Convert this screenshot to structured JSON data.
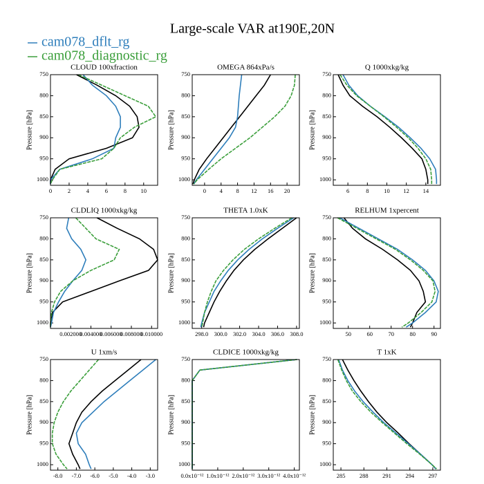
{
  "title": "Large-scale VAR at190E,20N",
  "legend": [
    {
      "name": "cam078_dflt_rg",
      "color": "#2e7ebb"
    },
    {
      "name": "cam078_diagnostic_rg",
      "color": "#3a9e3a"
    }
  ],
  "chart_data": [
    {
      "type": "line",
      "title": "CLOUD  100xfraction",
      "ylabel": "Pressure [hPa]",
      "xlim": [
        0,
        11.5
      ],
      "xticks": [
        0,
        2,
        4,
        6,
        8,
        10
      ],
      "ylim": [
        1013,
        750
      ],
      "yticks": [
        750,
        800,
        850,
        900,
        950,
        1000
      ],
      "y": [
        750,
        775,
        800,
        825,
        850,
        875,
        900,
        925,
        950,
        975,
        1000,
        1010
      ],
      "series": [
        {
          "color": "#000000",
          "linestyle": "solid",
          "values": [
            2.8,
            5,
            7,
            8.5,
            9.3,
            9.5,
            8.8,
            6,
            2,
            0.5,
            0,
            0
          ]
        },
        {
          "color": "#2e7ebb",
          "linestyle": "solid",
          "values": [
            3.5,
            4.5,
            6,
            7,
            7.5,
            7.5,
            7,
            6.8,
            4.5,
            1,
            0,
            0
          ]
        },
        {
          "color": "#3a9e3a",
          "linestyle": "dashed",
          "values": [
            3,
            5.5,
            8,
            10.5,
            11.3,
            9,
            7.5,
            6.8,
            5.5,
            1,
            0.2,
            0
          ]
        }
      ]
    },
    {
      "type": "line",
      "title": "OMEGA  864xPa/s",
      "ylabel": "Pressure [hPa]",
      "xlim": [
        -3,
        23
      ],
      "xticks": [
        0,
        4,
        8,
        12,
        16,
        20
      ],
      "ylim": [
        1013,
        750
      ],
      "yticks": [
        750,
        800,
        850,
        900,
        950,
        1000
      ],
      "y": [
        750,
        775,
        800,
        825,
        850,
        875,
        900,
        925,
        950,
        975,
        1000,
        1010
      ],
      "series": [
        {
          "color": "#000000",
          "linestyle": "solid",
          "values": [
            16,
            14.5,
            12.5,
            10.5,
            8.5,
            6.5,
            4.5,
            2.5,
            0.5,
            -1.3,
            -2.5,
            -2.8
          ]
        },
        {
          "color": "#2e7ebb",
          "linestyle": "solid",
          "values": [
            9,
            8.7,
            8.4,
            8.2,
            8,
            7.5,
            6,
            4,
            2,
            0,
            -2,
            -2.6
          ]
        },
        {
          "color": "#3a9e3a",
          "linestyle": "dashed",
          "values": [
            22,
            21.8,
            21,
            19.5,
            17,
            14,
            11,
            7.5,
            4,
            1,
            -1.8,
            -2.6
          ]
        }
      ]
    },
    {
      "type": "line",
      "title": "Q  1000xkg/kg",
      "ylabel": "Pressure [hPa]",
      "xlim": [
        4.5,
        15.5
      ],
      "xticks": [
        6,
        8,
        10,
        12,
        14
      ],
      "ylim": [
        1013,
        750
      ],
      "yticks": [
        750,
        800,
        850,
        900,
        950,
        1000
      ],
      "y": [
        750,
        775,
        800,
        825,
        850,
        875,
        900,
        925,
        950,
        975,
        1000,
        1010
      ],
      "series": [
        {
          "color": "#000000",
          "linestyle": "solid",
          "values": [
            5,
            5.5,
            6.2,
            7.5,
            9,
            10.3,
            11.5,
            12.6,
            13.6,
            14,
            14.2,
            14.2
          ]
        },
        {
          "color": "#2e7ebb",
          "linestyle": "solid",
          "values": [
            5.5,
            6.1,
            7,
            8.3,
            9.8,
            11.2,
            12.4,
            13.5,
            14.4,
            15,
            15.1,
            15.1
          ]
        },
        {
          "color": "#3a9e3a",
          "linestyle": "dashed",
          "values": [
            5.2,
            5.9,
            6.9,
            8.3,
            9.7,
            11,
            12.2,
            13.2,
            14,
            14.5,
            14.6,
            14.6
          ]
        }
      ]
    },
    {
      "type": "line",
      "title": "CLDLIQ  1000xkg/kg",
      "ylabel": "Pressure [hPa]",
      "xlim": [
        0,
        0.0106
      ],
      "xticks": [
        {
          "value": 0.002,
          "label": "0.002000"
        },
        {
          "value": 0.004,
          "label": "0.004000"
        },
        {
          "value": 0.006,
          "label": "0.006000"
        },
        {
          "value": 0.008,
          "label": "0.008000"
        },
        {
          "value": 0.01,
          "label": "0.010000"
        }
      ],
      "ylim": [
        1013,
        750
      ],
      "yticks": [
        750,
        800,
        850,
        900,
        950,
        1000
      ],
      "y": [
        750,
        775,
        800,
        825,
        850,
        875,
        900,
        925,
        950,
        975,
        1000,
        1010
      ],
      "series": [
        {
          "color": "#000000",
          "linestyle": "solid",
          "values": [
            0.0046,
            0.0066,
            0.0088,
            0.0102,
            0.0106,
            0.0097,
            0.0068,
            0.004,
            0.0012,
            0.0002,
            0,
            0
          ]
        },
        {
          "color": "#2e7ebb",
          "linestyle": "solid",
          "values": [
            0.0018,
            0.0016,
            0.0021,
            0.003,
            0.0035,
            0.0031,
            0.0022,
            0.0014,
            0.0008,
            0.0003,
            0.0001,
            0
          ]
        },
        {
          "color": "#3a9e3a",
          "linestyle": "dashed",
          "values": [
            0.0025,
            0.0035,
            0.0045,
            0.0068,
            0.0063,
            0.004,
            0.0022,
            0.001,
            0.0004,
            0.0001,
            0,
            0
          ]
        }
      ]
    },
    {
      "type": "line",
      "title": "THETA  1.0xK",
      "ylabel": "Pressure [hPa]",
      "xlim": [
        297,
        308.3
      ],
      "xticks": [
        {
          "value": 298,
          "label": "298.0"
        },
        {
          "value": 300,
          "label": "300.0"
        },
        {
          "value": 302,
          "label": "302.0"
        },
        {
          "value": 304,
          "label": "304.0"
        },
        {
          "value": 306,
          "label": "306.0"
        },
        {
          "value": 308,
          "label": "308.0"
        }
      ],
      "ylim": [
        1013,
        750
      ],
      "yticks": [
        750,
        800,
        850,
        900,
        950,
        1000
      ],
      "y": [
        750,
        775,
        800,
        825,
        850,
        875,
        900,
        925,
        950,
        975,
        1000,
        1010
      ],
      "series": [
        {
          "color": "#000000",
          "linestyle": "solid",
          "values": [
            308,
            306.5,
            305,
            303.6,
            302.4,
            301.4,
            300.6,
            299.9,
            299.3,
            298.8,
            298.3,
            298.2
          ]
        },
        {
          "color": "#2e7ebb",
          "linestyle": "solid",
          "values": [
            307.7,
            306,
            304.4,
            303,
            301.8,
            300.8,
            300,
            299.3,
            298.8,
            298.3,
            298,
            297.9
          ]
        },
        {
          "color": "#3a9e3a",
          "linestyle": "dashed",
          "values": [
            307.5,
            305.7,
            304,
            302.5,
            301.3,
            300.3,
            299.5,
            299,
            298.6,
            298.3,
            298.1,
            298
          ]
        }
      ]
    },
    {
      "type": "line",
      "title": "RELHUM  1xpercent",
      "ylabel": "Pressure [hPa]",
      "xlim": [
        43,
        93
      ],
      "xticks": [
        50,
        60,
        70,
        80,
        90
      ],
      "ylim": [
        1013,
        750
      ],
      "yticks": [
        750,
        800,
        850,
        900,
        950,
        1000
      ],
      "y": [
        750,
        775,
        800,
        825,
        850,
        875,
        900,
        925,
        950,
        975,
        1000,
        1010
      ],
      "series": [
        {
          "color": "#000000",
          "linestyle": "solid",
          "values": [
            48,
            52,
            58,
            66,
            73,
            79,
            83,
            85,
            86,
            82,
            80,
            79
          ]
        },
        {
          "color": "#2e7ebb",
          "linestyle": "solid",
          "values": [
            46,
            55,
            64,
            73,
            80,
            86,
            90,
            92,
            91,
            86,
            80,
            77
          ]
        },
        {
          "color": "#3a9e3a",
          "linestyle": "dashed",
          "values": [
            45,
            54,
            63,
            72,
            79,
            85,
            89.5,
            90.5,
            89,
            84,
            78,
            75
          ]
        }
      ]
    },
    {
      "type": "line",
      "title": "U  1xm/s",
      "ylabel": "Pressure [hPa]",
      "xlim": [
        -8.4,
        -2.6
      ],
      "xticks": [
        {
          "value": -8,
          "label": "-8.0"
        },
        {
          "value": -7,
          "label": "-7.0"
        },
        {
          "value": -6,
          "label": "-6.0"
        },
        {
          "value": -5,
          "label": "-5.0"
        },
        {
          "value": -4,
          "label": "-4.0"
        },
        {
          "value": -3,
          "label": "-3.0"
        }
      ],
      "ylim": [
        1013,
        750
      ],
      "yticks": [
        750,
        800,
        850,
        900,
        950,
        1000
      ],
      "y": [
        750,
        775,
        800,
        825,
        850,
        875,
        900,
        925,
        950,
        975,
        1000,
        1010
      ],
      "series": [
        {
          "color": "#000000",
          "linestyle": "solid",
          "values": [
            -3.5,
            -4.2,
            -4.9,
            -5.6,
            -6.2,
            -6.7,
            -7,
            -7.2,
            -7.4,
            -7.2,
            -6.9,
            -6.8
          ]
        },
        {
          "color": "#2e7ebb",
          "linestyle": "solid",
          "values": [
            -2.7,
            -3.4,
            -4.1,
            -4.8,
            -5.5,
            -6.1,
            -6.7,
            -7,
            -6.9,
            -6.5,
            -6.3,
            -6.2
          ]
        },
        {
          "color": "#3a9e3a",
          "linestyle": "dashed",
          "values": [
            -5.8,
            -6.3,
            -6.8,
            -7.3,
            -7.7,
            -8,
            -8.2,
            -8.3,
            -8.3,
            -8.1,
            -7.7,
            -7.5
          ]
        }
      ]
    },
    {
      "type": "line",
      "title": "CLDICE  1000xkg/kg",
      "ylabel": "Pressure [hPa]",
      "xlim": [
        0,
        4.2e-12
      ],
      "xticks": [
        {
          "value": 0,
          "label": "0.0x10⁻¹²"
        },
        {
          "value": 1e-12,
          "label": "1.0x10⁻¹²"
        },
        {
          "value": 2e-12,
          "label": "2.0x10⁻¹²"
        },
        {
          "value": 3e-12,
          "label": "3.0x10⁻¹²"
        },
        {
          "value": 4e-12,
          "label": "4.0x10⁻¹²"
        }
      ],
      "ylim": [
        1013,
        750
      ],
      "yticks": [
        750,
        800,
        850,
        900,
        950,
        1000
      ],
      "y": [
        750,
        775,
        800,
        825,
        850,
        875,
        900,
        925,
        950,
        975,
        1000,
        1010
      ],
      "series": [
        {
          "color": "#000000",
          "linestyle": "solid",
          "values": [
            4.1e-12,
            3e-13,
            0,
            0,
            0,
            0,
            0,
            0,
            0,
            0,
            0,
            0
          ]
        },
        {
          "color": "#2e7ebb",
          "linestyle": "solid",
          "values": [
            4.1e-12,
            3e-13,
            0,
            0,
            0,
            0,
            0,
            0,
            0,
            0,
            0,
            0
          ]
        },
        {
          "color": "#3a9e3a",
          "linestyle": "dashed",
          "values": [
            4.1e-12,
            3e-13,
            0,
            0,
            0,
            0,
            0,
            0,
            0,
            0,
            0,
            0
          ]
        }
      ]
    },
    {
      "type": "line",
      "title": "T  1xK",
      "ylabel": "Pressure [hPa]",
      "xlim": [
        284,
        298
      ],
      "xticks": [
        285,
        288,
        291,
        294,
        297
      ],
      "ylim": [
        1013,
        750
      ],
      "yticks": [
        750,
        800,
        850,
        900,
        950,
        1000
      ],
      "y": [
        750,
        775,
        800,
        825,
        850,
        875,
        900,
        925,
        950,
        975,
        1000,
        1010
      ],
      "series": [
        {
          "color": "#000000",
          "linestyle": "solid",
          "values": [
            285.2,
            285.9,
            286.7,
            287.6,
            288.6,
            289.7,
            291,
            292.5,
            293.9,
            295.4,
            296.9,
            297.4
          ]
        },
        {
          "color": "#2e7ebb",
          "linestyle": "solid",
          "values": [
            284.7,
            285.2,
            285.9,
            286.8,
            287.9,
            289.2,
            290.6,
            292.2,
            293.8,
            295.4,
            296.9,
            297.4
          ]
        },
        {
          "color": "#3a9e3a",
          "linestyle": "dashed",
          "values": [
            284.6,
            285.1,
            285.7,
            286.5,
            287.6,
            288.9,
            290.4,
            292,
            293.6,
            295.3,
            296.9,
            297.5
          ]
        }
      ]
    }
  ]
}
